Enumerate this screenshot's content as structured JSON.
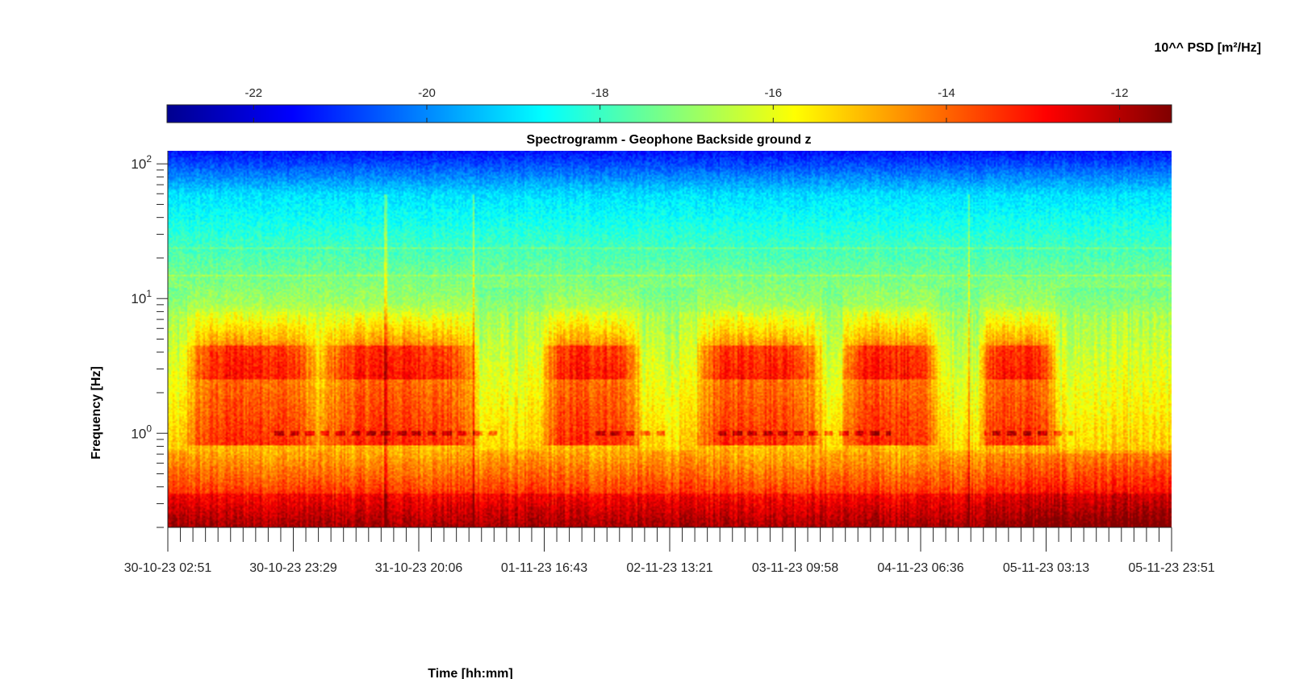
{
  "chart_data": {
    "type": "heatmap",
    "title": "Spectrogramm - Geophone Backside ground z",
    "xlabel": "Time [hh:mm]",
    "ylabel": "Frequency [Hz]",
    "colorbar": {
      "label": "10^^ PSD [m²/Hz]",
      "ticks": [
        -22,
        -20,
        -18,
        -16,
        -14,
        -12
      ],
      "range": [
        -23,
        -11.4
      ],
      "colormap": "jet",
      "location": "top"
    },
    "x_tick_labels": [
      "30-10-23 02:51",
      "30-10-23 23:29",
      "31-10-23 20:06",
      "01-11-23 16:43",
      "02-11-23 13:21",
      "03-11-23 09:58",
      "04-11-23 06:36",
      "05-11-23 03:13",
      "05-11-23 23:51"
    ],
    "xlim": [
      "30-10-23 02:51",
      "05-11-23 23:51"
    ],
    "y_scale": "log",
    "y_tick_labels": [
      {
        "base": "10",
        "exp": "0"
      },
      {
        "base": "10",
        "exp": "1"
      },
      {
        "base": "10",
        "exp": "2"
      }
    ],
    "y_tick_values": [
      1,
      10,
      100
    ],
    "ylim": [
      0.2,
      125
    ],
    "grid": false,
    "features": {
      "day_activity_bursts_hz": [
        2.5,
        4.5
      ],
      "day_activity_intervals_days": [
        [
          0.1,
          1.05
        ],
        [
          1.0,
          2.15
        ],
        [
          2.55,
          3.25
        ],
        [
          3.6,
          4.5
        ],
        [
          4.6,
          5.3
        ],
        [
          5.55,
          6.1
        ]
      ],
      "line_1hz_intervals_days": [
        [
          0.7,
          2.25
        ],
        [
          2.9,
          3.4
        ],
        [
          3.75,
          4.95
        ],
        [
          5.6,
          6.2
        ]
      ],
      "spikes_days": [
        1.49,
        2.09,
        5.49
      ],
      "persistent_line_frequencies_hz": [
        15,
        24
      ]
    }
  }
}
